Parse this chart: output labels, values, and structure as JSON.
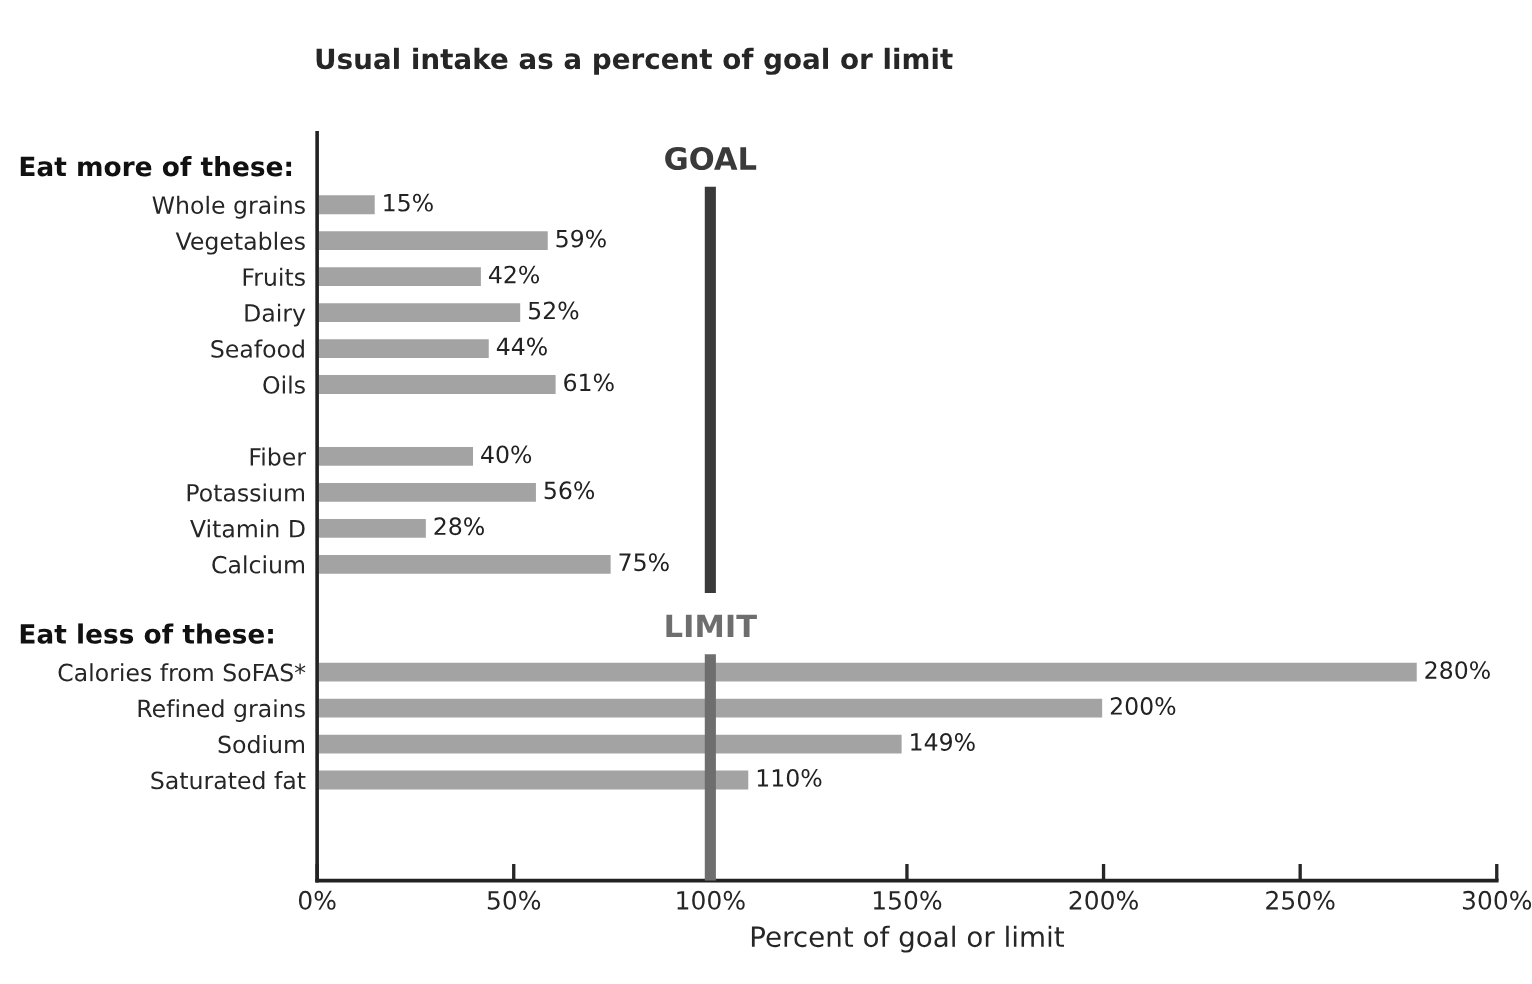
{
  "chart_data": {
    "type": "bar",
    "orientation": "horizontal",
    "title": "Usual intake as a percent of goal or limit",
    "xlabel": "Percent of goal or limit",
    "annotations": [
      "Eat more of these:",
      "Eat less of these:"
    ],
    "categories": [
      null,
      "Whole grains",
      "Vegetables",
      "Fruits",
      "Dairy",
      "Seafood",
      "Oils",
      null,
      "Fiber",
      "Potassium",
      "Vitamin D",
      "Calcium",
      null,
      null,
      "Calories from SoFAS*",
      "Refined grains",
      "Sodium",
      "Saturated fat"
    ],
    "values": [
      null,
      15,
      59,
      42,
      52,
      44,
      61,
      null,
      40,
      56,
      28,
      75,
      null,
      null,
      280,
      200,
      149,
      110
    ],
    "value_labels": [
      null,
      "15%",
      "59%",
      "42%",
      "52%",
      "44%",
      "61%",
      null,
      "40%",
      "56%",
      "28%",
      "75%",
      null,
      null,
      "280%",
      "200%",
      "149%",
      "110%"
    ],
    "color": "#a3a3a3",
    "xlim": [
      0,
      300
    ],
    "xticks": [
      {
        "value": 0,
        "label": "0%"
      },
      {
        "value": 50,
        "label": "50%"
      },
      {
        "value": 100,
        "label": "100%"
      },
      {
        "value": 150,
        "label": "150%"
      },
      {
        "value": 200,
        "label": "200%"
      },
      {
        "value": 250,
        "label": "250%"
      },
      {
        "value": 300,
        "label": "300%"
      }
    ],
    "ref_lines": [
      {
        "axis": "x",
        "value": 100,
        "label": "GOAL",
        "color": "#3a3a3a"
      },
      {
        "axis": "x",
        "value": 100,
        "label": "LIMIT",
        "color": "#6e6e6e"
      }
    ],
    "grid": false,
    "legend": false
  }
}
